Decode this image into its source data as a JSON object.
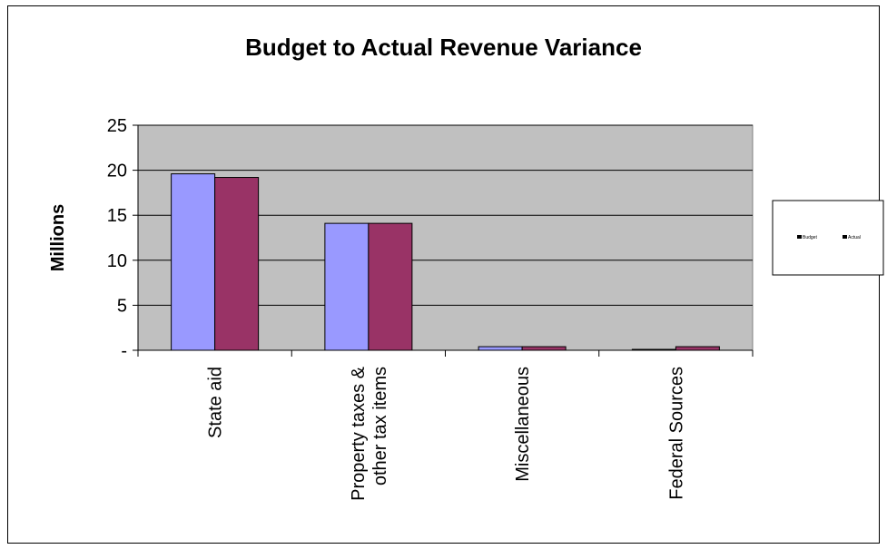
{
  "chart_data": {
    "type": "bar",
    "title": "Budget to Actual Revenue Variance",
    "xlabel": "",
    "ylabel": "Millions",
    "categories": [
      "State aid",
      "Property taxes & other tax items",
      "Miscellaneous",
      "Federal Sources"
    ],
    "category_label_lines": [
      [
        "State aid"
      ],
      [
        "Property taxes &",
        "other tax items"
      ],
      [
        "Miscellaneous"
      ],
      [
        "Federal Sources"
      ]
    ],
    "series": [
      {
        "name": "Budget",
        "values": [
          19.6,
          14.1,
          0.4,
          0.1
        ],
        "color": "#9999ff"
      },
      {
        "name": "Actual",
        "values": [
          19.2,
          14.1,
          0.4,
          0.4
        ],
        "color": "#993366"
      }
    ],
    "ylim": [
      0,
      25
    ],
    "yticks": [
      0,
      5,
      10,
      15,
      20,
      25
    ],
    "ytick_labels": [
      "-",
      "5",
      "10",
      "15",
      "20",
      "25"
    ],
    "grid": true,
    "plot_background": "#c0c0c0",
    "legend_position": "right"
  }
}
